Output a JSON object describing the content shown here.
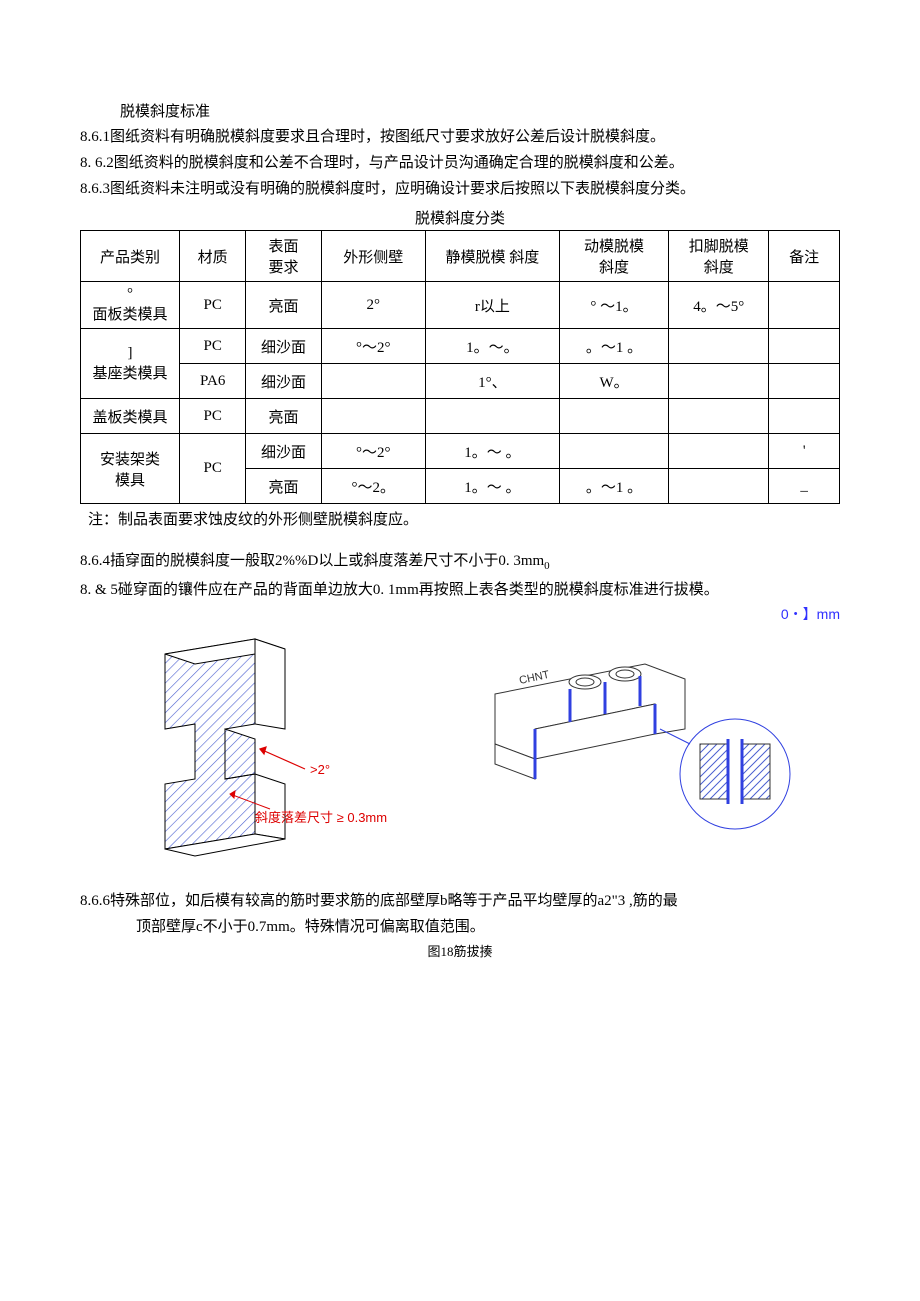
{
  "heading": "脱模斜度标准",
  "p1": "8.6.1图纸资料有明确脱模斜度要求且合理时，按图纸尺寸要求放好公差后设计脱模斜度。",
  "p2": "8. 6.2图纸资料的脱模斜度和公差不合理时，与产品设计员沟通确定合理的脱模斜度和公差。",
  "p3": "8.6.3图纸资料未注明或没有明确的脱模斜度时，应明确设计要求后按照以下表脱模斜度分类。",
  "table_title": "脱模斜度分类",
  "table": {
    "headers": [
      "产品类别",
      "材质",
      "表面\n要求",
      "外形侧壁",
      "静模脱模 斜度",
      "动模脱模\n斜度",
      "扣脚脱模\n斜度",
      "备注"
    ],
    "rows": [
      {
        "cat": "°\n面板类模具",
        "catrows": 1,
        "cells": [
          "PC",
          "亮面",
          "2°",
          "r以上",
          "° 〜1。",
          "4。〜5°",
          ""
        ]
      },
      {
        "cat": "]\n基座类模具",
        "catrows": 2,
        "cells": [
          "PC",
          "细沙面",
          "°〜2°",
          "1。〜。",
          "。〜1 。",
          "",
          ""
        ]
      },
      {
        "cat": "",
        "catrows": 0,
        "cells": [
          "PA6",
          "细沙面",
          "",
          "1°、",
          "W。",
          "",
          ""
        ]
      },
      {
        "cat": "盖板类模具",
        "catrows": 1,
        "cells": [
          "PC",
          "亮面",
          "",
          "",
          "",
          "",
          ""
        ]
      },
      {
        "cat": "安装架类\n模具",
        "catrows": 2,
        "cells": [
          "PC",
          "细沙面",
          "°〜2°",
          "1。〜 。",
          "",
          "",
          "'"
        ]
      },
      {
        "cat": "",
        "catrows": 0,
        "cells": [
          "",
          "亮面",
          "°〜2。",
          "1。〜 。",
          "。〜1 。",
          "",
          "_"
        ]
      }
    ]
  },
  "note": "注：制品表面要求蚀皮纹的外形侧壁脱模斜度应。",
  "p4a": "8.6.4插穿面的脱模斜度一般取2%%D以上或斜度落差尺寸不小于0. 3mm",
  "p4sub": "0",
  "p5": "8. & 5碰穿面的镶件应在产品的背面单边放大0. 1mm再按照上表各类型的脱模斜度标准进行拔模。",
  "blue_label": "0・】mm",
  "svg_left": {
    "arrow_label": ">2°",
    "dim_label": "斜度落差尺寸 ≥ 0.3mm",
    "hatch_color": "#4a5fd0",
    "outline_color": "#000"
  },
  "svg_right": {
    "hatch_color": "#4a5fd0",
    "outline_color": "#333",
    "text": "CHNT"
  },
  "p6": "8.6.6特殊部位，如后模有较高的筋时要求筋的底部壁厚b略等于产品平均壁厚的a2\"3 ,筋的最",
  "p6b": "顶部壁厚c不小于0.7mm。特殊情况可偏离取值范围。",
  "fig_caption": "图18筋拔揍"
}
